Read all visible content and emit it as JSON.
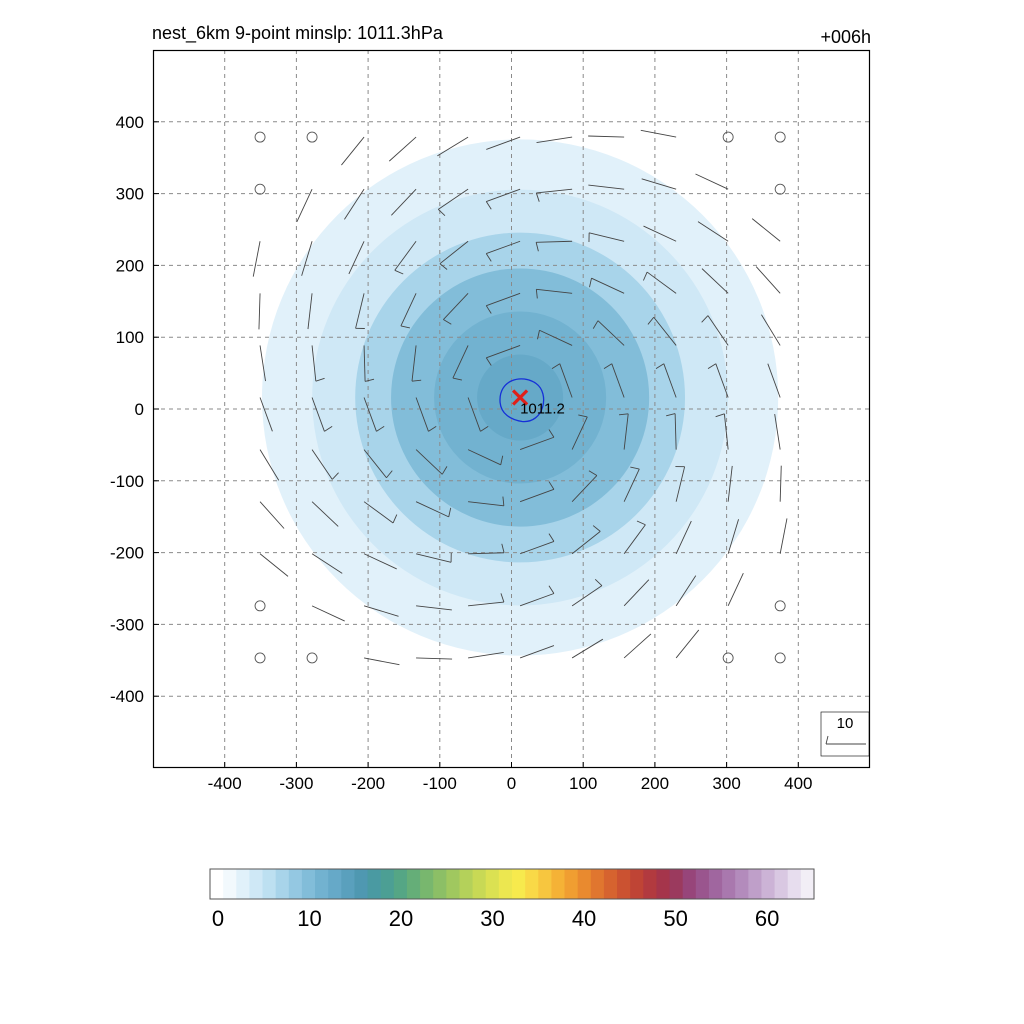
{
  "chart_data": {
    "type": "heatmap",
    "title": "nest_6km  9-point minslp: 1011.3hPa",
    "time_label": "+006h",
    "xlim": [
      -500,
      500
    ],
    "ylim": [
      -500,
      500
    ],
    "x_ticks": [
      -400,
      -300,
      -200,
      -100,
      0,
      100,
      200,
      300,
      400
    ],
    "y_ticks": [
      400,
      300,
      200,
      100,
      0,
      -100,
      -200,
      -300,
      -400
    ],
    "grid": true,
    "center": {
      "x": 12,
      "y": 16,
      "label": "1011.2"
    },
    "field_rings": [
      {
        "radius": 450,
        "value": 1
      },
      {
        "radius": 360,
        "value": 3
      },
      {
        "radius": 290,
        "value": 5
      },
      {
        "radius": 230,
        "value": 8
      },
      {
        "radius": 180,
        "value": 11
      },
      {
        "radius": 120,
        "value": 12
      },
      {
        "radius": 60,
        "value": 13
      }
    ],
    "wind_barbs": {
      "spacing_x": 78,
      "spacing_y": 78,
      "calm_outside_radius": 445
    },
    "reference_vector": {
      "label": "10"
    },
    "colorbar": {
      "min": 0,
      "max": 66,
      "ticks": [
        "0",
        "10",
        "20",
        "30",
        "40",
        "50",
        "60"
      ],
      "colors": [
        "#ffffff",
        "#f2f9fd",
        "#e1f1fa",
        "#cfe8f6",
        "#bde0f1",
        "#a8d4ea",
        "#94c8e2",
        "#82bdd9",
        "#72b2d0",
        "#66a9c8",
        "#5aa0bd",
        "#4f98b1",
        "#4a9aa2",
        "#4c9f94",
        "#55a685",
        "#65ae78",
        "#78b76e",
        "#8cbf66",
        "#a0c85f",
        "#b4d15a",
        "#c8d955",
        "#dbe152",
        "#ece750",
        "#f7ea4d",
        "#f9d947",
        "#f7c63f",
        "#f5b236",
        "#f09e31",
        "#e98a2f",
        "#e0762f",
        "#d6632f",
        "#cb5231",
        "#bf4435",
        "#b23a3f",
        "#a5354b",
        "#9b3a5e",
        "#97457a",
        "#9a558e",
        "#a0669f",
        "#a978ae",
        "#b38bbc",
        "#bf9fc9",
        "#ccb3d6",
        "#d9c8e2",
        "#e7ddee",
        "#f2eef6"
      ]
    }
  }
}
